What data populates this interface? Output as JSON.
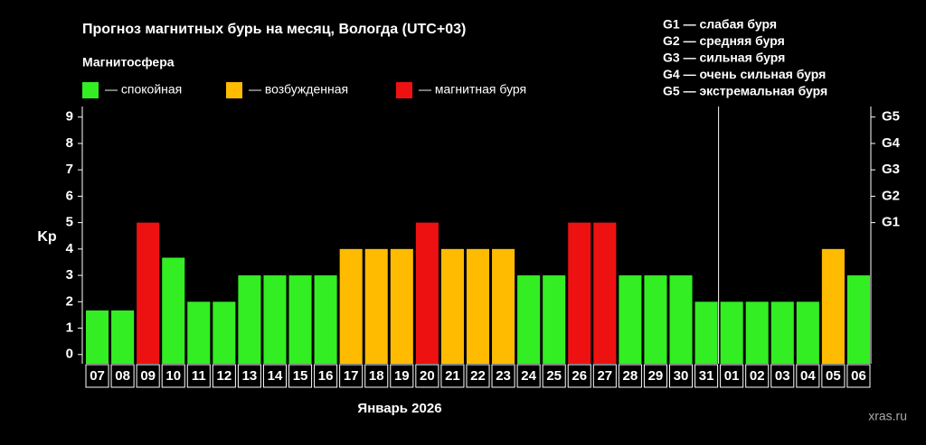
{
  "chart_data": {
    "type": "bar",
    "title": "Прогноз магнитных бурь на месяц, Вологда (UTC+03)",
    "legend_title": "Магнитосфера",
    "legend": [
      {
        "label": "— спокойная",
        "color": "#33ee22"
      },
      {
        "label": "— возбужденная",
        "color": "#ffbb00"
      },
      {
        "label": "— магнитная буря",
        "color": "#ee1111"
      }
    ],
    "g_scale": [
      "G1 — слабая буря",
      "G2 — средняя буря",
      "G3 — сильная буря",
      "G4 — очень сильная буря",
      "G5 — экстремальная буря"
    ],
    "y_label": "Kp",
    "x_label": "Январь 2026",
    "watermark": "xras.ru",
    "categories": [
      "07",
      "08",
      "09",
      "10",
      "11",
      "12",
      "13",
      "14",
      "15",
      "16",
      "17",
      "18",
      "19",
      "20",
      "21",
      "22",
      "23",
      "24",
      "25",
      "26",
      "27",
      "28",
      "29",
      "30",
      "31",
      "01",
      "02",
      "03",
      "04",
      "05",
      "06"
    ],
    "values": [
      1.67,
      1.67,
      5,
      3.67,
      2,
      2,
      3,
      3,
      3,
      3,
      4,
      4,
      4,
      5,
      4,
      4,
      4,
      3,
      3,
      5,
      5,
      3,
      3,
      3,
      2,
      2,
      2,
      2,
      2,
      4,
      3
    ],
    "colors": [
      "#33ee22",
      "#33ee22",
      "#ee1111",
      "#33ee22",
      "#33ee22",
      "#33ee22",
      "#33ee22",
      "#33ee22",
      "#33ee22",
      "#33ee22",
      "#ffbb00",
      "#ffbb00",
      "#ffbb00",
      "#ee1111",
      "#ffbb00",
      "#ffbb00",
      "#ffbb00",
      "#33ee22",
      "#33ee22",
      "#ee1111",
      "#ee1111",
      "#33ee22",
      "#33ee22",
      "#33ee22",
      "#33ee22",
      "#33ee22",
      "#33ee22",
      "#33ee22",
      "#33ee22",
      "#ffbb00",
      "#33ee22"
    ],
    "ylim": [
      -0.35,
      9.4
    ],
    "yticks": [
      0,
      1,
      2,
      3,
      4,
      5,
      6,
      7,
      8,
      9
    ],
    "y2lim": [
      -0.35,
      9.4
    ],
    "y2ticks": [
      {
        "value": 5,
        "label": "G1"
      },
      {
        "value": 6,
        "label": "G2"
      },
      {
        "value": 7,
        "label": "G3"
      },
      {
        "value": 8,
        "label": "G4"
      },
      {
        "value": 9,
        "label": "G5"
      }
    ]
  }
}
